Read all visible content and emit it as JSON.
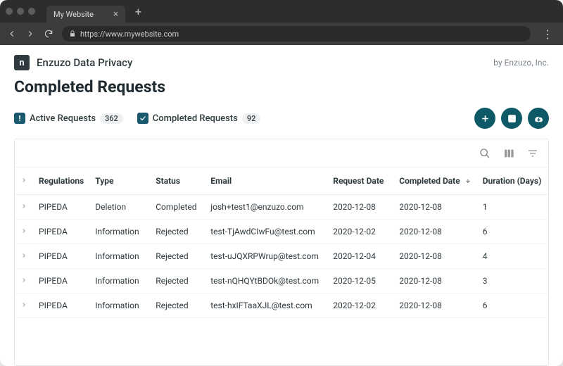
{
  "browser": {
    "tab_title": "My Website",
    "url": "https://www.mywebsite.com"
  },
  "header": {
    "brand": "Enzuzo Data Privacy",
    "by": "by Enzuzo, Inc.",
    "logo_letter": "n"
  },
  "page_title": "Completed Requests",
  "nav": {
    "active": {
      "label": "Active Requests",
      "count": "362"
    },
    "completed": {
      "label": "Completed Requests",
      "count": "92"
    }
  },
  "action_icons": {
    "add": "plus-icon",
    "pdf": "pdf-icon",
    "download": "download-cloud-icon"
  },
  "colors": {
    "accent": "#0e5968",
    "icon_bg": "#1a5a6e",
    "text": "#2f3a3f",
    "border": "#e5e7e8"
  },
  "table": {
    "columns": [
      "Regulations",
      "Type",
      "Status",
      "Email",
      "Request Date",
      "Completed Date",
      "Duration (Days)"
    ],
    "sorted_column": "Completed Date",
    "sort_dir": "desc",
    "rows": [
      {
        "regulations": "PIPEDA",
        "type": "Deletion",
        "status": "Completed",
        "email": "josh+test1@enzuzo.com",
        "request_date": "2020-12-08",
        "completed_date": "2020-12-08",
        "duration": "1"
      },
      {
        "regulations": "PIPEDA",
        "type": "Information",
        "status": "Rejected",
        "email": "test-TjAwdCIwFu@test.com",
        "request_date": "2020-12-02",
        "completed_date": "2020-12-08",
        "duration": "6"
      },
      {
        "regulations": "PIPEDA",
        "type": "Information",
        "status": "Rejected",
        "email": "test-uJQXRPWrup@test.com",
        "request_date": "2020-12-04",
        "completed_date": "2020-12-08",
        "duration": "4"
      },
      {
        "regulations": "PIPEDA",
        "type": "Information",
        "status": "Rejected",
        "email": "test-nQHQYtBDOk@test.com",
        "request_date": "2020-12-05",
        "completed_date": "2020-12-08",
        "duration": "3"
      },
      {
        "regulations": "PIPEDA",
        "type": "Information",
        "status": "Rejected",
        "email": "test-hxIFTaaXJL@test.com",
        "request_date": "2020-12-02",
        "completed_date": "2020-12-08",
        "duration": "6"
      }
    ]
  }
}
